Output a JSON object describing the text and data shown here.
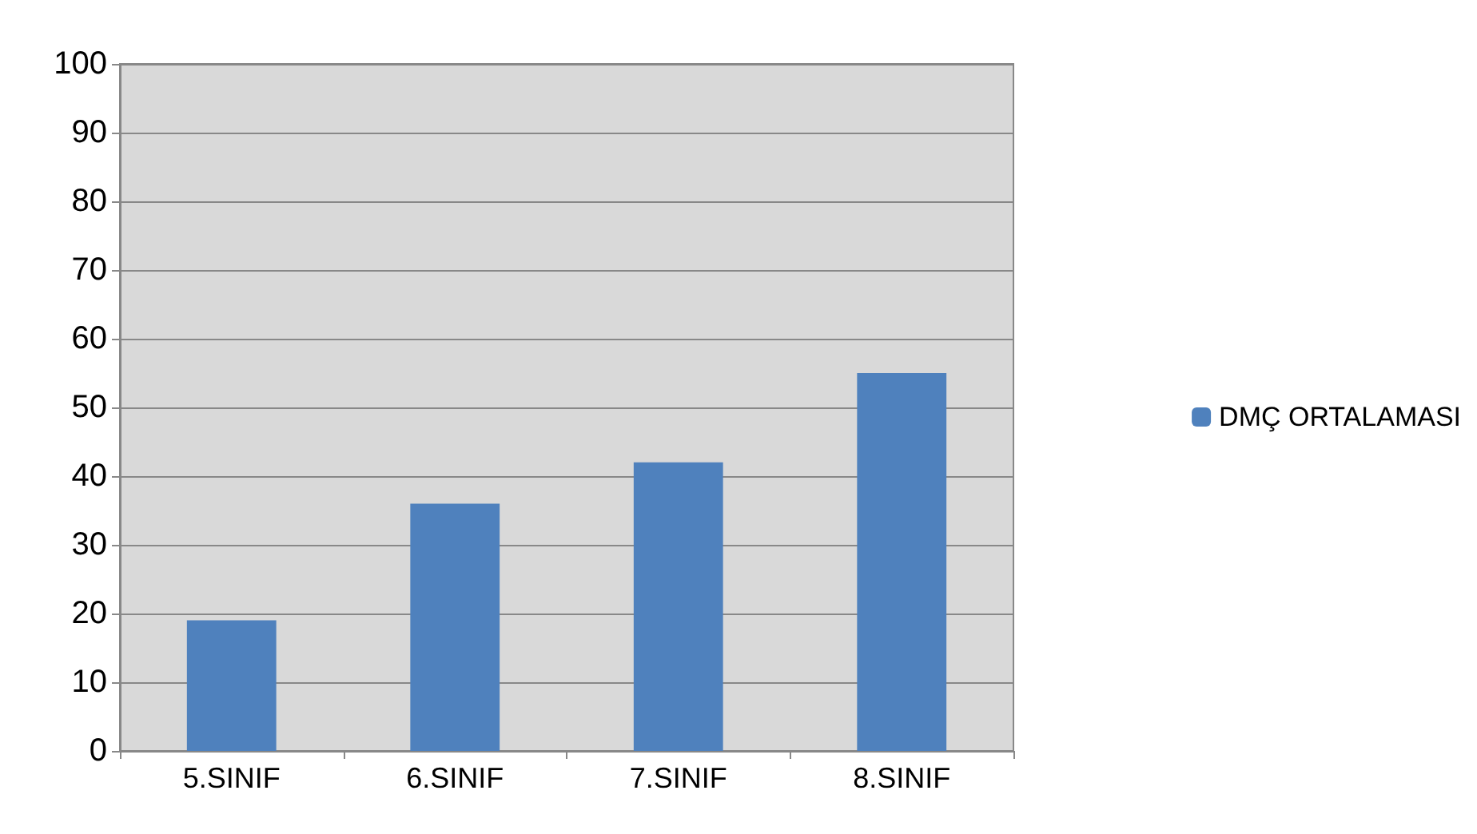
{
  "chart_data": {
    "type": "bar",
    "categories": [
      "5.SINIF",
      "6.SINIF",
      "7.SINIF",
      "8.SINIF"
    ],
    "series": [
      {
        "name": "DMÇ ORTALAMASI",
        "color": "#4f81bd",
        "values": [
          19,
          36,
          42,
          55
        ]
      }
    ],
    "ylim": [
      0,
      100
    ],
    "yticks": [
      0,
      10,
      20,
      30,
      40,
      50,
      60,
      70,
      80,
      90,
      100
    ],
    "grid": "y",
    "legend": "right"
  }
}
